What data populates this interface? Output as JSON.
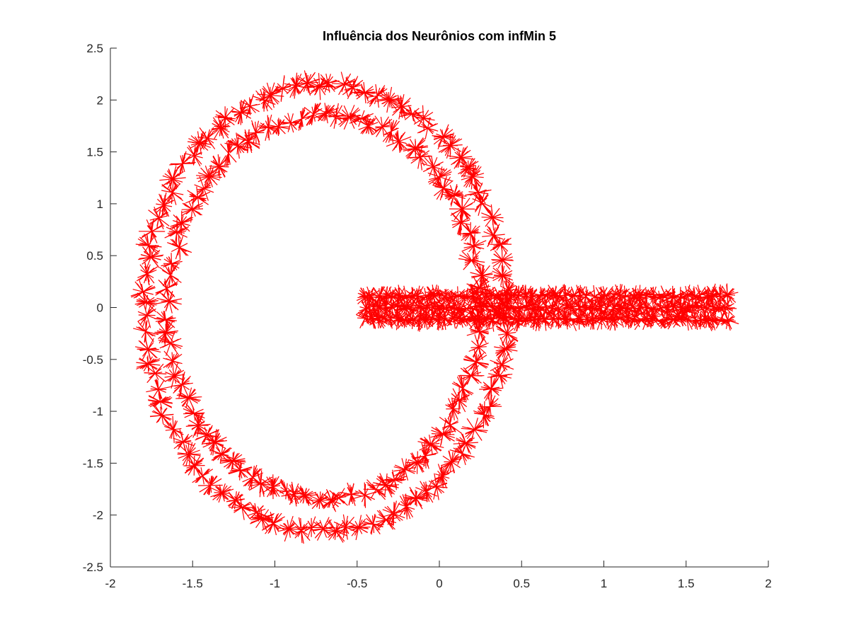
{
  "chart_data": {
    "type": "line",
    "title": "Influência dos Neurônios com infMin 5",
    "xlabel": "",
    "ylabel": "",
    "xlim": [
      -2,
      2
    ],
    "ylim": [
      -2.5,
      2.5
    ],
    "x_ticks": [
      -2,
      -1.5,
      -1,
      -0.5,
      0,
      0.5,
      1,
      1.5,
      2
    ],
    "x_tick_labels": [
      "-2",
      "-1.5",
      "-1",
      "-0.5",
      "0",
      "0.5",
      "1",
      "1.5",
      "2"
    ],
    "y_ticks": [
      2.5,
      2,
      1.5,
      1,
      0.5,
      0,
      -0.5,
      -1,
      -1.5,
      -2,
      -2.5
    ],
    "y_tick_labels": [
      "2.5",
      "2",
      "1.5",
      "1",
      "0.5",
      "0",
      "-0.5",
      "-1",
      "-1.5",
      "-2",
      "-2.5"
    ],
    "grid": false,
    "legend": "none",
    "series": [
      {
        "color": "#ff0000",
        "description_shape": "ring",
        "center": [
          -0.7,
          0
        ],
        "outer_radii": [
          1.1,
          2.15
        ],
        "inner_radii": [
          0.95,
          1.85
        ]
      },
      {
        "color": "#ff0000",
        "description_shape": "bar",
        "x_range": [
          -0.5,
          1.8
        ],
        "y_range": [
          -0.17,
          0.17
        ]
      }
    ]
  }
}
